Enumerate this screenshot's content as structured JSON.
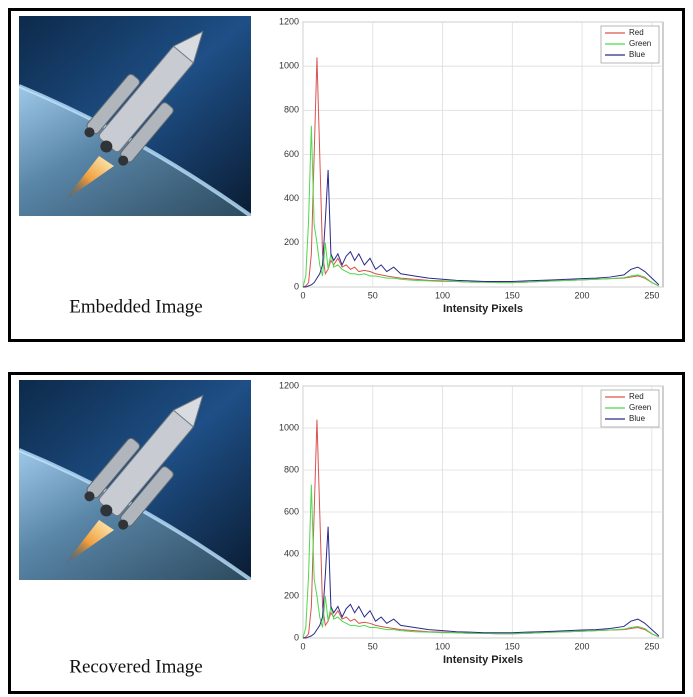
{
  "captions": [
    "Embedded Image",
    "Recovered Image"
  ],
  "chart_data": [
    {
      "type": "line",
      "xlabel": "Intensity Pixels",
      "x": [
        0,
        2,
        4,
        6,
        8,
        10,
        12,
        14,
        16,
        18,
        20,
        22,
        25,
        28,
        31,
        34,
        37,
        40,
        44,
        48,
        52,
        56,
        60,
        65,
        70,
        80,
        90,
        100,
        110,
        120,
        130,
        140,
        150,
        160,
        170,
        180,
        190,
        200,
        210,
        220,
        230,
        235,
        240,
        245,
        250,
        255
      ],
      "series": [
        {
          "name": "Red",
          "color": "#d9534f",
          "values": [
            0,
            5,
            20,
            150,
            600,
            1040,
            600,
            150,
            60,
            80,
            120,
            100,
            130,
            90,
            100,
            80,
            90,
            70,
            75,
            70,
            60,
            55,
            50,
            45,
            40,
            35,
            30,
            28,
            25,
            22,
            22,
            20,
            20,
            22,
            25,
            28,
            30,
            32,
            35,
            38,
            40,
            45,
            50,
            40,
            20,
            5
          ]
        },
        {
          "name": "Green",
          "color": "#4cd94c",
          "values": [
            0,
            50,
            300,
            730,
            280,
            200,
            100,
            50,
            200,
            80,
            150,
            90,
            100,
            80,
            70,
            60,
            60,
            55,
            60,
            50,
            50,
            45,
            40,
            40,
            35,
            30,
            28,
            25,
            25,
            22,
            22,
            20,
            20,
            22,
            25,
            28,
            30,
            32,
            35,
            38,
            42,
            50,
            55,
            45,
            20,
            5
          ]
        },
        {
          "name": "Blue",
          "color": "#2a2a8c",
          "values": [
            0,
            0,
            5,
            10,
            20,
            40,
            60,
            100,
            300,
            530,
            150,
            120,
            150,
            100,
            140,
            160,
            120,
            150,
            100,
            130,
            80,
            100,
            70,
            90,
            60,
            50,
            40,
            35,
            30,
            28,
            25,
            25,
            25,
            28,
            30,
            32,
            35,
            38,
            40,
            45,
            55,
            80,
            90,
            70,
            40,
            10
          ]
        }
      ],
      "xlim": [
        0,
        258
      ],
      "ylim": [
        0,
        1200
      ],
      "xticks": [
        0,
        50,
        100,
        150,
        200,
        250
      ],
      "yticks": [
        0,
        200,
        400,
        600,
        800,
        1000,
        1200
      ],
      "grid": true,
      "legend": "upper right"
    },
    {
      "type": "line",
      "xlabel": "Intensity Pixels",
      "x": [
        0,
        2,
        4,
        6,
        8,
        10,
        12,
        14,
        16,
        18,
        20,
        22,
        25,
        28,
        31,
        34,
        37,
        40,
        44,
        48,
        52,
        56,
        60,
        65,
        70,
        80,
        90,
        100,
        110,
        120,
        130,
        140,
        150,
        160,
        170,
        180,
        190,
        200,
        210,
        220,
        230,
        235,
        240,
        245,
        250,
        255
      ],
      "series": [
        {
          "name": "Red",
          "color": "#d9534f",
          "values": [
            0,
            5,
            20,
            150,
            600,
            1040,
            600,
            150,
            60,
            80,
            120,
            100,
            130,
            90,
            100,
            80,
            90,
            70,
            75,
            70,
            60,
            55,
            50,
            45,
            40,
            35,
            30,
            28,
            25,
            22,
            22,
            20,
            20,
            22,
            25,
            28,
            30,
            32,
            35,
            38,
            40,
            45,
            50,
            40,
            20,
            5
          ]
        },
        {
          "name": "Green",
          "color": "#4cd94c",
          "values": [
            0,
            50,
            300,
            730,
            280,
            200,
            100,
            50,
            200,
            80,
            150,
            90,
            100,
            80,
            70,
            60,
            60,
            55,
            60,
            50,
            50,
            45,
            40,
            40,
            35,
            30,
            28,
            25,
            25,
            22,
            22,
            20,
            20,
            22,
            25,
            28,
            30,
            32,
            35,
            38,
            42,
            50,
            55,
            45,
            20,
            5
          ]
        },
        {
          "name": "Blue",
          "color": "#2a2a8c",
          "values": [
            0,
            0,
            5,
            10,
            20,
            40,
            60,
            100,
            300,
            530,
            150,
            120,
            150,
            100,
            140,
            160,
            120,
            150,
            100,
            130,
            80,
            100,
            70,
            90,
            60,
            50,
            40,
            35,
            30,
            28,
            25,
            25,
            25,
            28,
            30,
            32,
            35,
            38,
            40,
            45,
            55,
            80,
            90,
            70,
            40,
            10
          ]
        }
      ],
      "xlim": [
        0,
        258
      ],
      "ylim": [
        0,
        1200
      ],
      "xticks": [
        0,
        50,
        100,
        150,
        200,
        250
      ],
      "yticks": [
        0,
        200,
        400,
        600,
        800,
        1000,
        1200
      ],
      "grid": true,
      "legend": "upper right"
    }
  ]
}
